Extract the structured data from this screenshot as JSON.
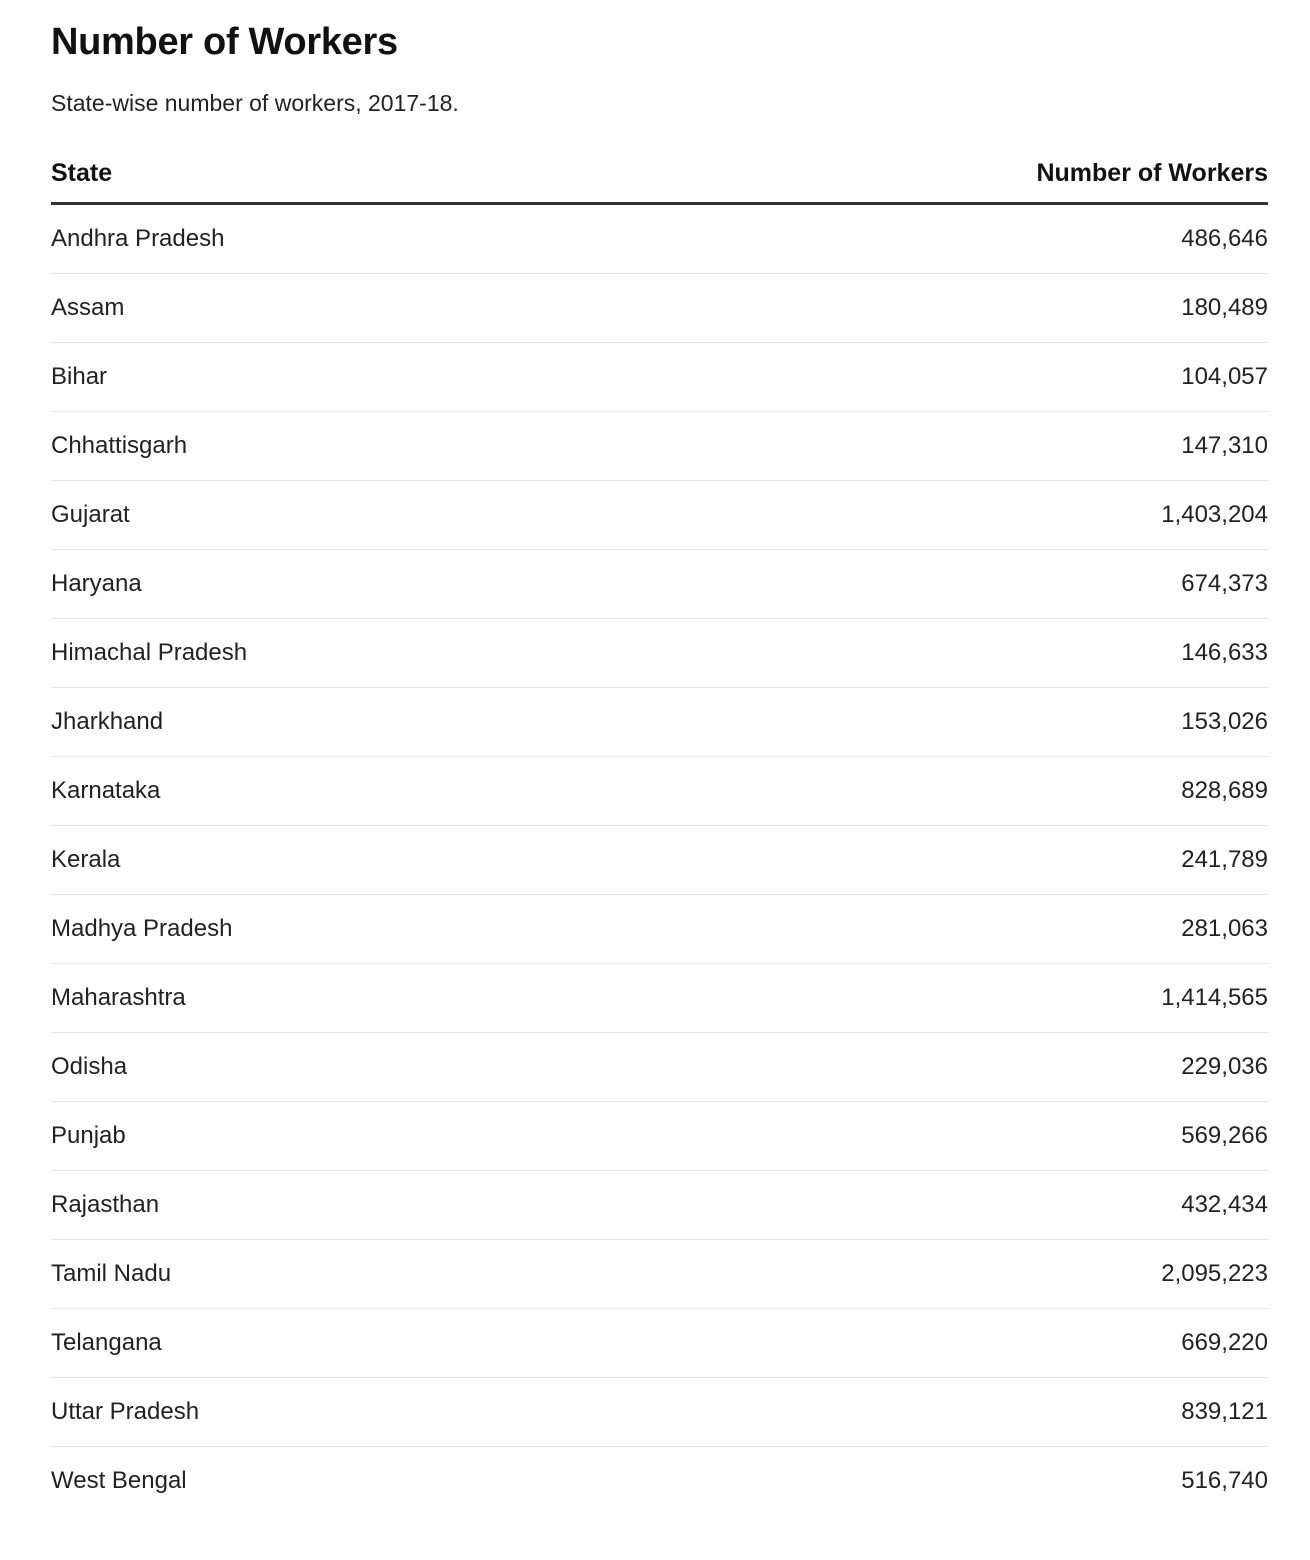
{
  "title": "Number of Workers",
  "subtitle": "State-wise number of workers, 2017-18.",
  "chart_data": {
    "type": "table",
    "columns": [
      "State",
      "Number of Workers"
    ],
    "rows": [
      [
        "Andhra Pradesh",
        "486,646"
      ],
      [
        "Assam",
        "180,489"
      ],
      [
        "Bihar",
        "104,057"
      ],
      [
        "Chhattisgarh",
        "147,310"
      ],
      [
        "Gujarat",
        "1,403,204"
      ],
      [
        "Haryana",
        "674,373"
      ],
      [
        "Himachal Pradesh",
        "146,633"
      ],
      [
        "Jharkhand",
        "153,026"
      ],
      [
        "Karnataka",
        "828,689"
      ],
      [
        "Kerala",
        "241,789"
      ],
      [
        "Madhya Pradesh",
        "281,063"
      ],
      [
        "Maharashtra",
        "1,414,565"
      ],
      [
        "Odisha",
        "229,036"
      ],
      [
        "Punjab",
        "569,266"
      ],
      [
        "Rajasthan",
        "432,434"
      ],
      [
        "Tamil Nadu",
        "2,095,223"
      ],
      [
        "Telangana",
        "669,220"
      ],
      [
        "Uttar Pradesh",
        "839,121"
      ],
      [
        "West Bengal",
        "516,740"
      ]
    ]
  }
}
